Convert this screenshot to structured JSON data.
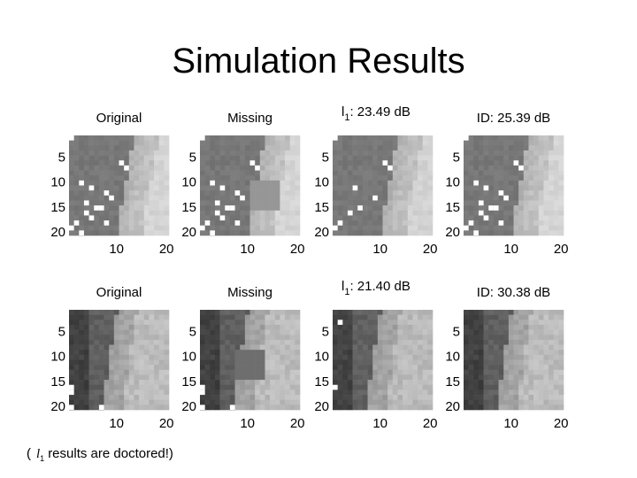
{
  "title": "Simulation Results",
  "axes": {
    "yticks": [
      5,
      10,
      15,
      20
    ],
    "xticks": [
      10,
      20
    ]
  },
  "rows": [
    {
      "panels": [
        {
          "title": "Original"
        },
        {
          "title": "Missing"
        },
        {
          "title_parts": {
            "symbol": "l",
            "sub": "1",
            "rest": ": 23.49 dB"
          }
        },
        {
          "title": "ID: 25.39 dB"
        }
      ]
    },
    {
      "panels": [
        {
          "title": "Original"
        },
        {
          "title": "Missing"
        },
        {
          "title_parts": {
            "symbol": "l",
            "sub": "1",
            "rest": ": 21.40 dB"
          }
        },
        {
          "title": "ID: 30.38 dB"
        }
      ]
    }
  ],
  "footnote": {
    "open": "(",
    "symbol": "l",
    "sub": "1",
    "rest": "results are doctored!)"
  }
}
